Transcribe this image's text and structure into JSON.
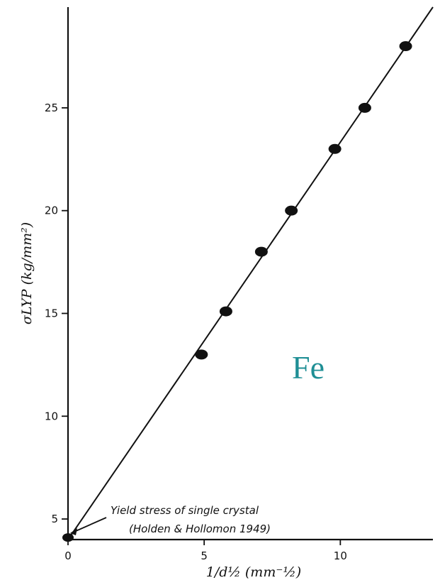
{
  "chart_data": {
    "type": "scatter",
    "x": [
      0,
      4.9,
      5.8,
      7.1,
      8.2,
      9.8,
      10.9,
      12.4
    ],
    "y": [
      4.1,
      13.0,
      15.1,
      18.0,
      20.0,
      23.0,
      25.0,
      28.0
    ],
    "xlim": [
      0,
      13.4
    ],
    "ylim": [
      4.0,
      29.9
    ],
    "x_ticks": [
      0,
      5,
      10
    ],
    "x_tick_labels": [
      "0",
      "5",
      "10"
    ],
    "y_ticks": [
      5,
      10,
      15,
      20,
      25
    ],
    "y_tick_labels": [
      "5",
      "10",
      "15",
      "20",
      "25"
    ],
    "fit_line": {
      "start": [
        0,
        4.0
      ],
      "end": [
        13.4,
        29.9
      ]
    },
    "xlabel": "1/d½ (mm⁻½)",
    "ylabel": "σLYP (kg/mm²)",
    "annotation": {
      "line1": "Yield stress of single crystal",
      "line2": "(Holden & Hollomon 1949)",
      "point": [
        0,
        4.1
      ]
    },
    "material_label": "Fe",
    "grid": false,
    "colors": {
      "ink": "#111111",
      "material_label": "#1f8f95"
    }
  }
}
